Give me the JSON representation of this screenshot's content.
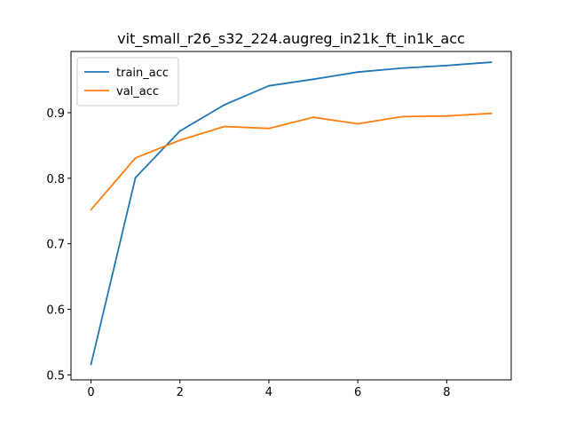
{
  "chart_data": {
    "type": "line",
    "title": "vit_small_r26_s32_224.augreg_in21k_ft_in1k_acc",
    "xlabel": "",
    "ylabel": "",
    "x": [
      0,
      1,
      2,
      3,
      4,
      5,
      6,
      7,
      8,
      9
    ],
    "xlim": [
      -0.45,
      9.45
    ],
    "ylim": [
      0.4924,
      0.9934
    ],
    "xticks": [
      0,
      2,
      4,
      6,
      8
    ],
    "yticks": [
      0.5,
      0.6,
      0.7,
      0.8,
      0.9
    ],
    "xtick_labels": [
      "0",
      "2",
      "4",
      "6",
      "8"
    ],
    "ytick_labels": [
      "0.5",
      "0.6",
      "0.7",
      "0.8",
      "0.9"
    ],
    "grid": false,
    "legend_position": "top-left",
    "series": [
      {
        "name": "train_acc",
        "color": "#1f77b4",
        "values": [
          0.516,
          0.801,
          0.872,
          0.912,
          0.941,
          0.951,
          0.962,
          0.968,
          0.972,
          0.977
        ]
      },
      {
        "name": "val_acc",
        "color": "#ff7f0e",
        "values": [
          0.752,
          0.831,
          0.858,
          0.879,
          0.876,
          0.893,
          0.883,
          0.894,
          0.895,
          0.899
        ]
      }
    ]
  }
}
